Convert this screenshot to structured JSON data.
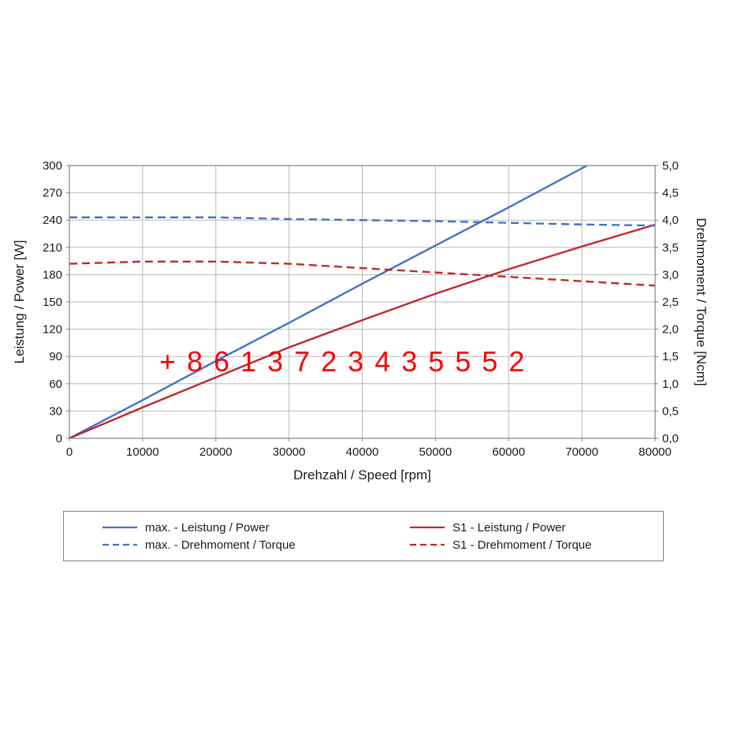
{
  "figure": {
    "background": "#ffffff",
    "grid_color": "#b8b8b8",
    "frame_color": "#808080",
    "text_color": "#1a1a1a"
  },
  "watermark": {
    "text": "+ 8 6 1 3 7 2 3 4 3 5 5 5 2",
    "color": "#fa0000"
  },
  "chart_data": {
    "type": "line",
    "title": "",
    "xlabel": "Drehzahl / Speed [rpm]",
    "xlim": [
      0,
      80000
    ],
    "x_ticks": [
      0,
      10000,
      20000,
      30000,
      40000,
      50000,
      60000,
      70000,
      80000
    ],
    "grid": true,
    "legend_position": "bottom",
    "left_axis": {
      "label": "Leistung / Power [W]",
      "lim": [
        0,
        300
      ],
      "ticks": [
        0,
        30,
        60,
        90,
        120,
        150,
        180,
        210,
        240,
        270,
        300
      ]
    },
    "right_axis": {
      "label": "Drehmoment / Torque [Ncm]",
      "lim": [
        0,
        5
      ],
      "tick_labels": [
        "0,0",
        "0,5",
        "1,0",
        "1,5",
        "2,0",
        "2,5",
        "3,0",
        "3,5",
        "4,0",
        "4,5",
        "5,0"
      ]
    },
    "series": [
      {
        "name": "max. - Leistung / Power",
        "axis": "left",
        "dash": "solid",
        "color": "#4472c4",
        "points": [
          [
            0,
            0
          ],
          [
            10000,
            42
          ],
          [
            20000,
            85
          ],
          [
            30000,
            127
          ],
          [
            40000,
            170
          ],
          [
            50000,
            212
          ],
          [
            60000,
            254
          ],
          [
            70700,
            300
          ]
        ]
      },
      {
        "name": "S1 - Leistung / Power",
        "axis": "left",
        "dash": "solid",
        "color": "#c1272d",
        "points": [
          [
            0,
            0
          ],
          [
            10000,
            34
          ],
          [
            20000,
            67
          ],
          [
            30000,
            100
          ],
          [
            40000,
            130
          ],
          [
            50000,
            159
          ],
          [
            60000,
            186
          ],
          [
            70000,
            211
          ],
          [
            80000,
            235
          ]
        ]
      },
      {
        "name": "max. - Drehmoment / Torque",
        "axis": "right",
        "dash": "dashed",
        "color": "#4472c4",
        "points": [
          [
            0,
            4.05
          ],
          [
            20000,
            4.05
          ],
          [
            30000,
            4.02
          ],
          [
            40000,
            4.0
          ],
          [
            50000,
            3.98
          ],
          [
            60000,
            3.95
          ],
          [
            70000,
            3.92
          ],
          [
            80000,
            3.9
          ]
        ]
      },
      {
        "name": "S1 - Drehmoment / Torque",
        "axis": "right",
        "dash": "dashed",
        "color": "#c1272d",
        "points": [
          [
            0,
            3.2
          ],
          [
            10000,
            3.24
          ],
          [
            20000,
            3.24
          ],
          [
            30000,
            3.2
          ],
          [
            40000,
            3.12
          ],
          [
            50000,
            3.04
          ],
          [
            60000,
            2.96
          ],
          [
            70000,
            2.88
          ],
          [
            80000,
            2.8
          ]
        ]
      }
    ]
  }
}
